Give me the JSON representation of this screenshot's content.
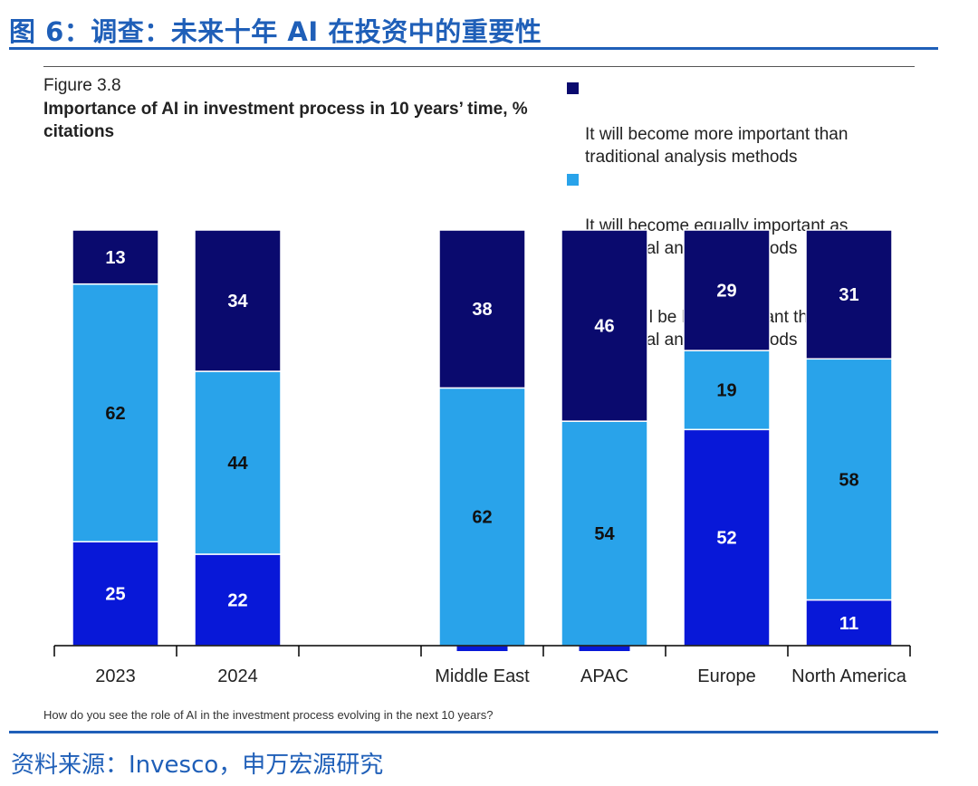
{
  "header": {
    "title": "图 6：调查：未来十年 AI 在投资中的重要性"
  },
  "figure": {
    "label": "Figure 3.8",
    "title": "Importance of AI in investment process in 10 years’ time, % citations",
    "question": "How do you see the role of AI in the investment process evolving in the next 10 years?"
  },
  "source": "资料来源：Invesco，申万宏源研究",
  "colors": {
    "more": "#0a0a6e",
    "equal": "#29a3ea",
    "less": "#0818d8",
    "axis": "#000000"
  },
  "chart_data": {
    "type": "bar",
    "stacked": true,
    "categories": [
      "2023",
      "2024",
      "",
      "Middle East",
      "APAC",
      "Europe",
      "North America"
    ],
    "ylim": [
      0,
      100
    ],
    "series": [
      {
        "name": "It will still be less important than traditional analysis methods",
        "key": "less",
        "values": [
          25,
          22,
          null,
          0,
          0,
          52,
          11
        ]
      },
      {
        "name": "It will become equally important as traditional analysis methods",
        "key": "equal",
        "values": [
          62,
          44,
          null,
          62,
          54,
          19,
          58
        ]
      },
      {
        "name": "It will become more important than traditional analysis methods",
        "key": "more",
        "values": [
          13,
          34,
          null,
          38,
          46,
          29,
          31
        ]
      }
    ],
    "legend": [
      {
        "key": "more",
        "label": "It will become more important than\ntraditional analysis methods"
      },
      {
        "key": "equal",
        "label": "It will become equally important as\ntraditional analysis methods"
      },
      {
        "key": "less",
        "label": "It will still be less important than\ntraditional analysis methods"
      }
    ],
    "legend_position": "top-right",
    "grid": false
  }
}
